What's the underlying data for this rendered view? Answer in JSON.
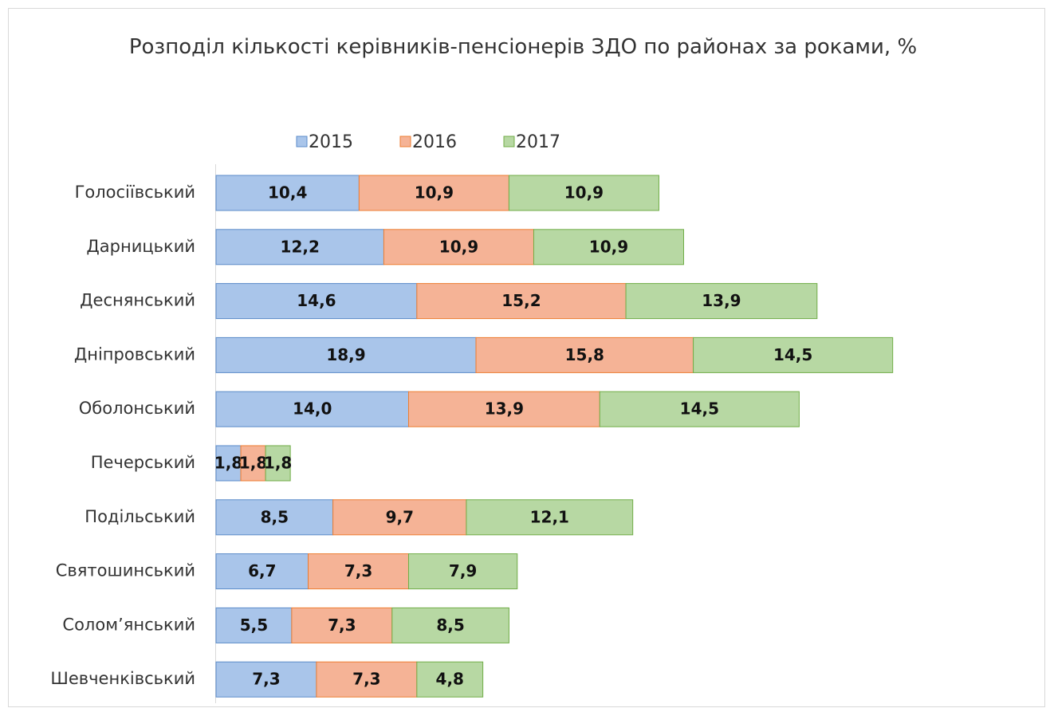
{
  "chart_data": {
    "type": "stacked-bar-horizontal",
    "title": "Розподіл кількості керівників-пенсіонерів ЗДО по районах за роками, %",
    "categories": [
      "Голосіївський",
      "Дарницький",
      "Деснянський",
      "Дніпровський",
      "Оболонський",
      "Печерський",
      "Подільський",
      "Святошинський",
      "Солом’янський",
      "Шевченківський"
    ],
    "series": [
      {
        "name": "2015",
        "color": "#a9c5ea",
        "values": [
          10.4,
          12.2,
          14.6,
          18.9,
          14.0,
          1.8,
          8.5,
          6.7,
          5.5,
          7.3
        ],
        "value_labels": [
          "10,4",
          "12,2",
          "14,6",
          "18,9",
          "14,0",
          "1,8",
          "8,5",
          "6,7",
          "5,5",
          "7,3"
        ]
      },
      {
        "name": "2016",
        "color": "#f5b396",
        "values": [
          10.9,
          10.9,
          15.2,
          15.8,
          13.9,
          1.8,
          9.7,
          7.3,
          7.3,
          7.3
        ],
        "value_labels": [
          "10,9",
          "10,9",
          "15,2",
          "15,8",
          "13,9",
          "1,8",
          "9,7",
          "7,3",
          "7,3",
          "7,3"
        ]
      },
      {
        "name": "2017",
        "color": "#b7d8a3",
        "values": [
          10.9,
          10.9,
          13.9,
          14.5,
          14.5,
          1.8,
          12.1,
          7.9,
          8.5,
          4.8
        ],
        "value_labels": [
          "10,9",
          "10,9",
          "13,9",
          "14,5",
          "14,5",
          "1,8",
          "12,1",
          "7,9",
          "8,5",
          "4,8"
        ]
      }
    ],
    "legend": "top"
  }
}
